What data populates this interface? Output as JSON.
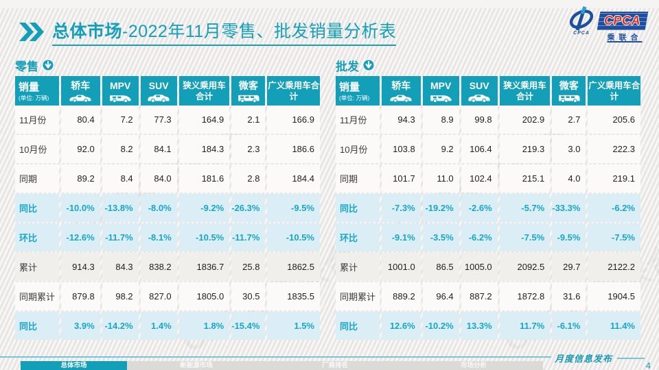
{
  "title": {
    "bold": "总体市场",
    "rest": "-2022年11月零售、批发销量分析表"
  },
  "logo": {
    "cpca": "CPCA",
    "sub": "乘联合",
    "icon_text": "CPCA"
  },
  "unit_header": {
    "label": "销量",
    "unit": "(单位: 万辆)"
  },
  "columns": [
    {
      "label": "轿车",
      "icon": "sedan-icon"
    },
    {
      "label": "MPV",
      "icon": "mpv-icon"
    },
    {
      "label": "SUV",
      "icon": "suv-icon"
    },
    {
      "label": "狭义乘用车合计",
      "icon": ""
    },
    {
      "label": "微客",
      "icon": "minibus-icon"
    },
    {
      "label": "广义乘用车合计",
      "icon": ""
    }
  ],
  "tables": [
    {
      "title": "零售",
      "badge_icon": "down-arrow-circle-icon",
      "rows": [
        {
          "label": "11月份",
          "type": "normal",
          "values": [
            "80.4",
            "7.2",
            "77.3",
            "164.9",
            "2.1",
            "166.9"
          ]
        },
        {
          "label": "10月份",
          "type": "normal",
          "values": [
            "92.0",
            "8.2",
            "84.1",
            "184.3",
            "2.3",
            "186.6"
          ]
        },
        {
          "label": "同期",
          "type": "normal",
          "values": [
            "89.2",
            "8.4",
            "84.0",
            "181.6",
            "2.8",
            "184.4"
          ]
        },
        {
          "label": "同比",
          "type": "pct",
          "values": [
            "-10.0%",
            "-13.8%",
            "-8.0%",
            "-9.2%",
            "-26.3%",
            "-9.5%"
          ]
        },
        {
          "label": "环比",
          "type": "pct",
          "values": [
            "-12.6%",
            "-11.7%",
            "-8.1%",
            "-10.5%",
            "-11.7%",
            "-10.5%"
          ]
        },
        {
          "label": "累计",
          "type": "cum",
          "values": [
            "914.3",
            "84.3",
            "838.2",
            "1836.7",
            "25.8",
            "1862.5"
          ]
        },
        {
          "label": "同期累计",
          "type": "normal",
          "values": [
            "879.8",
            "98.2",
            "827.0",
            "1805.0",
            "30.5",
            "1835.5"
          ]
        },
        {
          "label": "同比",
          "type": "pct",
          "values": [
            "3.9%",
            "-14.2%",
            "1.4%",
            "1.8%",
            "-15.4%",
            "1.5%"
          ]
        }
      ]
    },
    {
      "title": "批发",
      "badge_icon": "down-arrow-circle-icon",
      "rows": [
        {
          "label": "11月份",
          "type": "normal",
          "values": [
            "94.3",
            "8.9",
            "99.8",
            "202.9",
            "2.7",
            "205.6"
          ]
        },
        {
          "label": "10月份",
          "type": "normal",
          "values": [
            "103.8",
            "9.2",
            "106.4",
            "219.3",
            "3.0",
            "222.3"
          ]
        },
        {
          "label": "同期",
          "type": "normal",
          "values": [
            "101.7",
            "11.0",
            "102.4",
            "215.1",
            "4.0",
            "219.1"
          ]
        },
        {
          "label": "同比",
          "type": "pct",
          "values": [
            "-7.3%",
            "-19.2%",
            "-2.6%",
            "-5.7%",
            "-33.3%",
            "-6.2%"
          ]
        },
        {
          "label": "环比",
          "type": "pct",
          "values": [
            "-9.1%",
            "-3.5%",
            "-6.2%",
            "-7.5%",
            "-9.5%",
            "-7.5%"
          ]
        },
        {
          "label": "累计",
          "type": "cum",
          "values": [
            "1001.0",
            "86.5",
            "1005.0",
            "2092.5",
            "29.7",
            "2122.2"
          ]
        },
        {
          "label": "同期累计",
          "type": "normal",
          "values": [
            "889.2",
            "96.4",
            "887.2",
            "1872.8",
            "31.6",
            "1904.5"
          ]
        },
        {
          "label": "同比",
          "type": "pct",
          "values": [
            "12.6%",
            "-10.2%",
            "13.3%",
            "11.7%",
            "-6.1%",
            "11.4%"
          ]
        }
      ]
    }
  ],
  "watermark_text": "CPCA 乘联合",
  "footer": {
    "tabs": [
      {
        "label": "总体市场",
        "active": true
      },
      {
        "label": "新能源市场",
        "active": false
      },
      {
        "label": "厂商排名",
        "active": false
      },
      {
        "label": "市场分析",
        "active": false
      }
    ],
    "publish_label": "月度信息发布",
    "page_number": "4"
  },
  "colors": {
    "teal": "#149fb9",
    "pct_text": "#17a6c8",
    "pct_bg": "#dceef5",
    "logo_blue": "#1d4f9e",
    "logo_red": "#d7332b"
  }
}
